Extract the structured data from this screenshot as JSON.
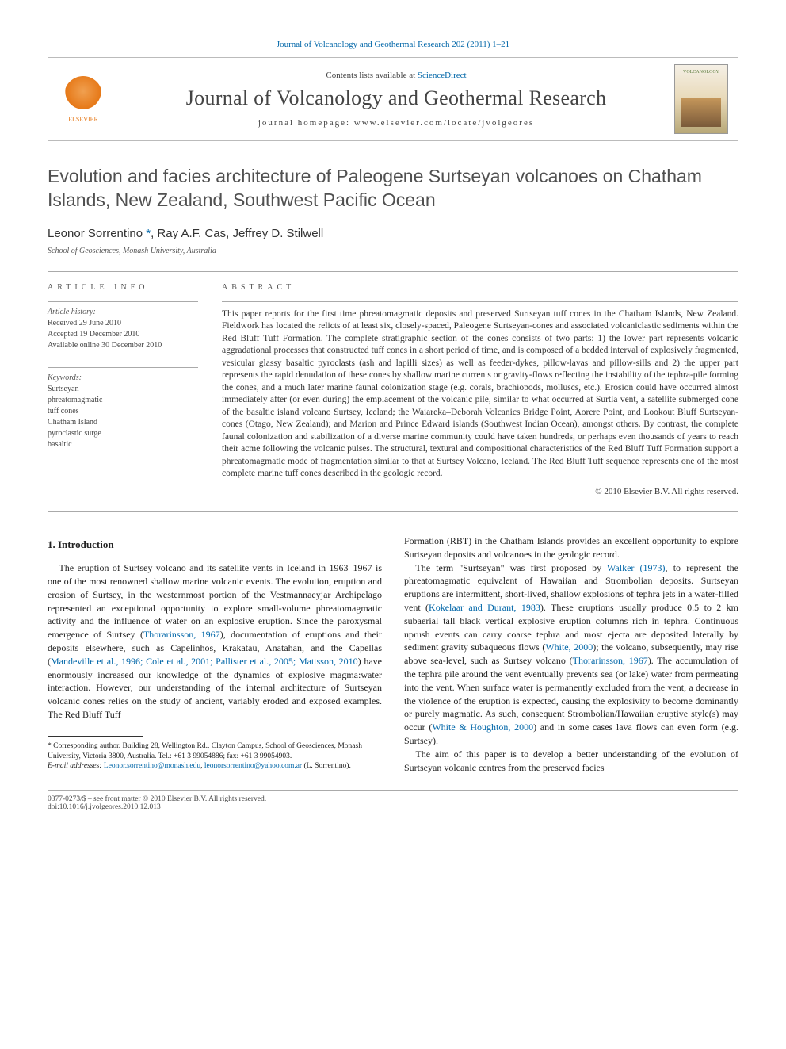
{
  "top_link": {
    "text": "Journal of Volcanology and Geothermal Research 202 (2011) 1–21"
  },
  "header": {
    "contents_prefix": "Contents lists available at ",
    "contents_link": "ScienceDirect",
    "journal_name": "Journal of Volcanology and Geothermal Research",
    "homepage_prefix": "journal homepage: ",
    "homepage_url": "www.elsevier.com/locate/jvolgeores",
    "publisher": "ELSEVIER",
    "cover_label": "VOLCANOLOGY"
  },
  "article": {
    "title": "Evolution and facies architecture of Paleogene Surtseyan volcanoes on Chatham Islands, New Zealand, Southwest Pacific Ocean",
    "authors_html": "Leonor Sorrentino <span class='corr'>*</span>, Ray A.F. Cas, Jeffrey D. Stilwell",
    "affiliation": "School of Geosciences, Monash University, Australia"
  },
  "info": {
    "heading": "article info",
    "history_label": "Article history:",
    "received": "Received 29 June 2010",
    "accepted": "Accepted 19 December 2010",
    "online": "Available online 30 December 2010",
    "keywords_label": "Keywords:",
    "keywords": [
      "Surtseyan",
      "phreatomagmatic",
      "tuff cones",
      "Chatham Island",
      "pyroclastic surge",
      "basaltic"
    ]
  },
  "abstract": {
    "heading": "abstract",
    "text": "This paper reports for the first time phreatomagmatic deposits and preserved Surtseyan tuff cones in the Chatham Islands, New Zealand. Fieldwork has located the relicts of at least six, closely-spaced, Paleogene Surtseyan-cones and associated volcaniclastic sediments within the Red Bluff Tuff Formation. The complete stratigraphic section of the cones consists of two parts: 1) the lower part represents volcanic aggradational processes that constructed tuff cones in a short period of time, and is composed of a bedded interval of explosively fragmented, vesicular glassy basaltic pyroclasts (ash and lapilli sizes) as well as feeder-dykes, pillow-lavas and pillow-sills and 2) the upper part represents the rapid denudation of these cones by shallow marine currents or gravity-flows reflecting the instability of the tephra-pile forming the cones, and a much later marine faunal colonization stage (e.g. corals, brachiopods, molluscs, etc.). Erosion could have occurred almost immediately after (or even during) the emplacement of the volcanic pile, similar to what occurred at Surtla vent, a satellite submerged cone of the basaltic island volcano Surtsey, Iceland; the Waiareka–Deborah Volcanics Bridge Point, Aorere Point, and Lookout Bluff Surtseyan-cones (Otago, New Zealand); and Marion and Prince Edward islands (Southwest Indian Ocean), amongst others. By contrast, the complete faunal colonization and stabilization of a diverse marine community could have taken hundreds, or perhaps even thousands of years to reach their acme following the volcanic pulses. The structural, textural and compositional characteristics of the Red Bluff Tuff Formation support a phreatomagmatic mode of fragmentation similar to that at Surtsey Volcano, Iceland. The Red Bluff Tuff sequence represents one of the most complete marine tuff cones described in the geologic record.",
    "copyright": "© 2010 Elsevier B.V. All rights reserved."
  },
  "body": {
    "section_heading": "1. Introduction",
    "p1a": "The eruption of Surtsey volcano and its satellite vents in Iceland in 1963–1967 is one of the most renowned shallow marine volcanic events. The evolution, eruption and erosion of Surtsey, in the westernmost portion of the Vestmannaeyjar Archipelago represented an exceptional opportunity to explore small-volume phreatomagmatic activity and the influence of water on an explosive eruption. Since the paroxysmal emergence of Surtsey (",
    "ref1": "Thorarinsson, 1967",
    "p1b": "), documentation of eruptions and their deposits elsewhere, such as Capelinhos, Krakatau, Anatahan, and the Capellas (",
    "ref2": "Mandeville et al., 1996; Cole et al., 2001; Pallister et al., 2005; Mattsson, 2010",
    "p1c": ") have enormously increased our knowledge of the dynamics of explosive magma:water interaction. However, our understanding of the internal architecture of Surtseyan volcanic cones relies on the study of ancient, variably eroded and exposed examples. The Red Bluff Tuff ",
    "p1d": "Formation (RBT) in the Chatham Islands provides an excellent opportunity to explore Surtseyan deposits and volcanoes in the geologic record.",
    "p2a": "The term \"Surtseyan\" was first proposed by ",
    "ref3": "Walker (1973)",
    "p2b": ", to represent the phreatomagmatic equivalent of Hawaiian and Strombolian deposits. Surtseyan eruptions are intermittent, short-lived, shallow explosions of tephra jets in a water-filled vent (",
    "ref4": "Kokelaar and Durant, 1983",
    "p2c": "). These eruptions usually produce 0.5 to 2 km subaerial tall black vertical explosive eruption columns rich in tephra. Continuous uprush events can carry coarse tephra and most ejecta are deposited laterally by sediment gravity subaqueous flows (",
    "ref5": "White, 2000",
    "p2d": "); the volcano, subsequently, may rise above sea-level, such as Surtsey volcano (",
    "ref6": "Thorarinsson, 1967",
    "p2e": "). The accumulation of the tephra pile around the vent eventually prevents sea (or lake) water from permeating into the vent. When surface water is permanently excluded from the vent, a decrease in the violence of the eruption is expected, causing the explosivity to become dominantly or purely magmatic. As such, consequent Strombolian/Hawaiian eruptive style(s) may occur (",
    "ref7": "White & Houghton, 2000",
    "p2f": ") and in some cases lava flows can even form (e.g. Surtsey).",
    "p3": "The aim of this paper is to develop a better understanding of the evolution of Surtseyan volcanic centres from the preserved facies"
  },
  "footnote": {
    "corr_label": "* Corresponding author. Building 28, Wellington Rd., Clayton Campus, School of Geosciences, Monash University, Victoria 3800, Australia. Tel.: +61 3 99054886; fax: +61 3 99054903.",
    "email_label": "E-mail addresses:",
    "email1": "Leonor.sorrentino@monash.edu",
    "email2": "leonorsorrentino@yahoo.com.ar",
    "email_suffix": "(L. Sorrentino)."
  },
  "footer": {
    "left1": "0377-0273/$ – see front matter © 2010 Elsevier B.V. All rights reserved.",
    "left2": "doi:10.1016/j.jvolgeores.2010.12.013"
  },
  "colors": {
    "link": "#0066a8",
    "publisher_orange": "#e67817",
    "text": "#222222",
    "rule": "#aaaaaa"
  }
}
